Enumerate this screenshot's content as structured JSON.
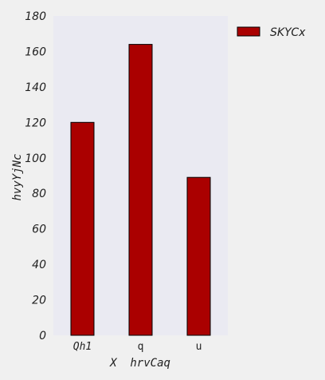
{
  "chart_data": {
    "type": "bar",
    "categories": [
      "Qh1",
      "q",
      "u"
    ],
    "series": [
      {
        "name": "SKYCx",
        "values": [
          120,
          164,
          89
        ],
        "color": "#aa0000"
      }
    ],
    "xlabel": "X  hrvCaq",
    "ylabel": "hvyYjNc",
    "ylim": [
      0,
      180
    ],
    "yticks": [
      0,
      20,
      40,
      60,
      80,
      100,
      120,
      140,
      160,
      180
    ],
    "grid": false,
    "legend": "outside-top-right",
    "plot_background": "#eaeaf2",
    "page_background": "#f0f0f0"
  }
}
